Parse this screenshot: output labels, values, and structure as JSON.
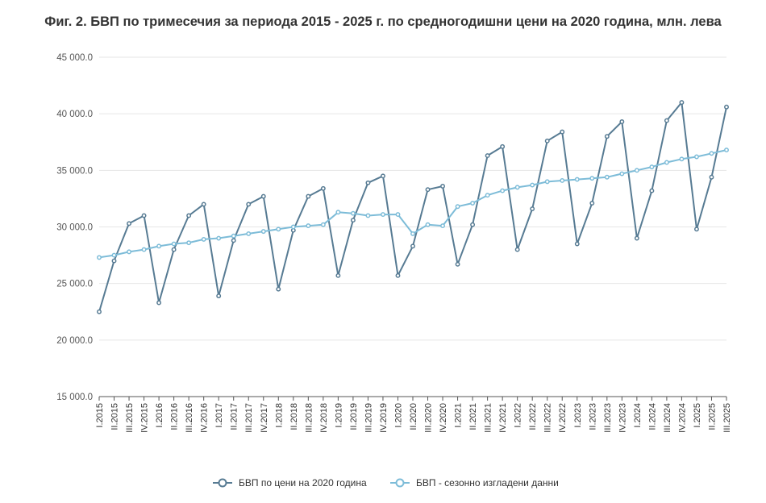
{
  "chart_data": {
    "type": "line",
    "title": "Фиг. 2. БВП по тримесечия за периода 2015 - 2025 г. по средногодишни цени на 2020 година, млн. лева",
    "xlabel": "",
    "ylabel": "",
    "ylim": [
      15000,
      45000
    ],
    "y_ticks": [
      "15 000.0",
      "20 000.0",
      "25 000.0",
      "30 000.0",
      "35 000.0",
      "40 000.0",
      "45 000.0"
    ],
    "grid": "horizontal",
    "legend_position": "bottom",
    "categories": [
      "I.2015",
      "II.2015",
      "III.2015",
      "IV.2015",
      "I.2016",
      "II.2016",
      "III.2016",
      "IV.2016",
      "I.2017",
      "II.2017",
      "III.2017",
      "IV.2017",
      "I.2018",
      "II.2018",
      "III.2018",
      "IV.2018",
      "I.2019",
      "II.2019",
      "III.2019",
      "IV.2019",
      "I.2020",
      "II.2020",
      "III.2020",
      "IV.2020",
      "I.2021",
      "II.2021",
      "III.2021",
      "IV.2021",
      "I.2022",
      "II.2022",
      "III.2022",
      "IV.2022",
      "I.2023",
      "II.2023",
      "III.2023",
      "IV.2023",
      "I.2024",
      "II.2024",
      "III.2024",
      "IV.2024",
      "I.2025",
      "II.2025",
      "III.2025"
    ],
    "series": [
      {
        "name": "БВП  по цени на 2020 година",
        "color": "#577b93",
        "values": [
          22500,
          27000,
          30300,
          31000,
          23300,
          28000,
          31000,
          32000,
          23900,
          28800,
          32000,
          32700,
          24500,
          29700,
          32700,
          33400,
          25700,
          30600,
          33900,
          34500,
          25700,
          28300,
          33300,
          33600,
          26700,
          30200,
          36300,
          37100,
          28000,
          31600,
          37600,
          38400,
          28500,
          32100,
          38000,
          39300,
          29000,
          33200,
          39400,
          41000,
          29800,
          34400,
          40600
        ]
      },
      {
        "name": "БВП - сезонно изгладени данни",
        "color": "#7dbcd8",
        "values": [
          27300,
          27500,
          27800,
          28000,
          28300,
          28500,
          28600,
          28900,
          29000,
          29200,
          29400,
          29600,
          29800,
          30000,
          30100,
          30200,
          31300,
          31200,
          31000,
          31100,
          31100,
          29400,
          30200,
          30100,
          31800,
          32100,
          32800,
          33200,
          33500,
          33700,
          34000,
          34100,
          34200,
          34300,
          34400,
          34700,
          35000,
          35300,
          35700,
          36000,
          36200,
          36500,
          36800
        ]
      }
    ]
  },
  "colors": {
    "grid": "#e6e6e6",
    "axis": "#555555",
    "marker_fill": "#ffffff"
  }
}
